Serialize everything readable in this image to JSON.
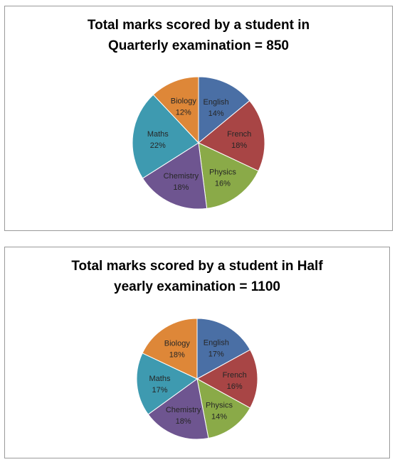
{
  "chart_data": [
    {
      "type": "pie",
      "title_lines": [
        "Total marks scored by a student in",
        "Quarterly examination = 850"
      ],
      "slices": [
        {
          "label": "English",
          "value": 14,
          "display": "14%",
          "color": "#4a6fa5"
        },
        {
          "label": "French",
          "value": 18,
          "display": "18%",
          "color": "#a84545"
        },
        {
          "label": "Physics",
          "value": 16,
          "display": "16%",
          "color": "#8aaa48"
        },
        {
          "label": "Chemistry",
          "value": 18,
          "display": "18%",
          "color": "#6e5590"
        },
        {
          "label": "Maths",
          "value": 22,
          "display": "22%",
          "color": "#3e9ab0"
        },
        {
          "label": "Biology",
          "value": 12,
          "display": "12%",
          "color": "#de8738"
        }
      ],
      "legend": "none",
      "start_angle_deg": 0,
      "direction": "clockwise"
    },
    {
      "type": "pie",
      "title_lines": [
        "Total marks scored by a student in Half",
        "yearly examination = 1100"
      ],
      "slices": [
        {
          "label": "English",
          "value": 17,
          "display": "17%",
          "color": "#4a6fa5"
        },
        {
          "label": "French",
          "value": 16,
          "display": "16%",
          "color": "#a84545"
        },
        {
          "label": "Physics",
          "value": 14,
          "display": "14%",
          "color": "#8aaa48"
        },
        {
          "label": "Chemistry",
          "value": 18,
          "display": "18%",
          "color": "#6e5590"
        },
        {
          "label": "Maths",
          "value": 17,
          "display": "17%",
          "color": "#3e9ab0"
        },
        {
          "label": "Biology",
          "value": 18,
          "display": "18%",
          "color": "#de8738"
        }
      ],
      "legend": "none",
      "start_angle_deg": 0,
      "direction": "clockwise"
    }
  ]
}
